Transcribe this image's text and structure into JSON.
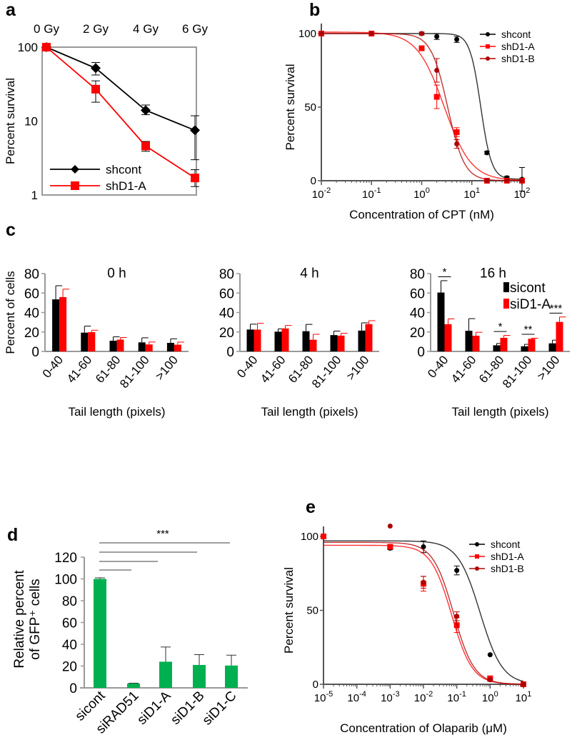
{
  "chart_data": [
    {
      "panel_label": "a",
      "type": "line",
      "x_categories": [
        "0 Gy",
        "2 Gy",
        "4 Gy",
        "6 Gy"
      ],
      "ylabel": "Percent survival",
      "yscale": "log",
      "ylim": [
        1,
        100
      ],
      "yticks": [
        "1",
        "10",
        "100"
      ],
      "legend": "bottom-left",
      "series": [
        {
          "name": "shcont",
          "color": "#000000",
          "marker": "diamond",
          "values": [
            100,
            52,
            14,
            7.5
          ],
          "err_low": [
            100,
            42,
            12.2,
            3
          ],
          "err_high": [
            100,
            62,
            16.5,
            11.8
          ]
        },
        {
          "name": "shD1-A",
          "color": "#ff0000",
          "marker": "square",
          "values": [
            100,
            27,
            4.6,
            1.7
          ],
          "err_low": [
            100,
            18,
            3.9,
            1.3
          ],
          "err_high": [
            100,
            35,
            5.3,
            2.2
          ]
        }
      ]
    },
    {
      "panel_label": "b",
      "type": "scatter",
      "xlabel": "Concentration of CPT (nM)",
      "ylabel": "Percent survival",
      "xscale": "log",
      "xlim": [
        0.01,
        100
      ],
      "xtick_base": "10",
      "xtick_exponents": [
        "-2",
        "-1",
        "0",
        "1",
        "2"
      ],
      "ylim": [
        0,
        100
      ],
      "yticks": [
        "0",
        "50",
        "100"
      ],
      "legend": "top-right",
      "x": [
        0.01,
        0.1,
        1,
        2,
        5,
        20,
        50,
        100
      ],
      "series": [
        {
          "name": "shcont",
          "color": "#000000",
          "values": [
            100,
            100,
            100,
            98,
            96,
            19,
            2,
            1
          ],
          "err": [
            0,
            0,
            1,
            2,
            2,
            1,
            1,
            8
          ],
          "fit": {
            "top": 100,
            "bottom": 1,
            "ic50": 15,
            "hill": 4
          }
        },
        {
          "name": "shD1-A",
          "color": "#ff0000",
          "values": [
            100,
            100,
            90,
            57,
            33,
            0,
            0,
            0
          ],
          "err": [
            0,
            0,
            0,
            8,
            3,
            0,
            0,
            0
          ],
          "fit": {
            "top": 101,
            "bottom": 0,
            "ic50": 2.8,
            "hill": 1.6
          }
        },
        {
          "name": "shD1-B",
          "color": "#b00000",
          "values": [
            100,
            100,
            100,
            75,
            25,
            0,
            0,
            0
          ],
          "err": [
            0,
            0,
            0,
            8,
            3,
            0,
            0,
            0
          ],
          "fit": {
            "top": 100,
            "bottom": 0,
            "ic50": 3.3,
            "hill": 2.6
          }
        }
      ]
    },
    {
      "panel_label": "c",
      "type": "bar",
      "categories": [
        "0-40",
        "41-60",
        "61-80",
        "81-100",
        ">100"
      ],
      "xlabel": "Tail length (pixels)",
      "ylabel": "Percent of cells",
      "ylim": [
        0,
        80
      ],
      "yticks": [
        "0",
        "20",
        "40",
        "60",
        "80"
      ],
      "legend": "top-right",
      "series_names": [
        "sicont",
        "siD1-A"
      ],
      "series_colors": [
        "#000000",
        "#ff0000"
      ],
      "subplots": [
        {
          "title": "0 h",
          "values": [
            [
              53.5,
              19.3,
              11,
              9.3,
              8.8
            ],
            [
              55.8,
              19.8,
              12.1,
              7.2,
              6.9
            ]
          ],
          "err_high": [
            [
              67.5,
              26,
              15,
              14,
              13
            ],
            [
              64,
              21.8,
              14.3,
              9.7,
              9.6
            ]
          ],
          "significance": []
        },
        {
          "title": "4 h",
          "values": [
            [
              22.5,
              20.3,
              20.8,
              16.8,
              21.4
            ],
            [
              22.4,
              23.6,
              12,
              16.2,
              28.1
            ]
          ],
          "err_high": [
            [
              28,
              23.2,
              27.8,
              20.9,
              29.4
            ],
            [
              28.9,
              26.7,
              17.6,
              18.7,
              31.6
            ]
          ],
          "significance": []
        },
        {
          "title": "16 h",
          "values": [
            [
              60.5,
              21.2,
              6.3,
              5.3,
              8.3
            ],
            [
              28,
              16.1,
              14,
              13,
              30.3
            ]
          ],
          "err_high": [
            [
              72.7,
              33.7,
              8.2,
              7.3,
              11.6
            ],
            [
              33.5,
              19.7,
              16.5,
              13.6,
              35.4
            ]
          ],
          "significance": [
            {
              "category": 0,
              "label": "*"
            },
            {
              "category": 2,
              "label": "*"
            },
            {
              "category": 3,
              "label": "**"
            },
            {
              "category": 4,
              "label": "***"
            }
          ]
        }
      ]
    },
    {
      "panel_label": "d",
      "type": "bar",
      "categories": [
        "sicont",
        "siRAD51",
        "siD1-A",
        "siD1-B",
        "siD1-C"
      ],
      "values": [
        100,
        4,
        24,
        21,
        20.5
      ],
      "err_high": [
        101,
        4.3,
        37.5,
        30.5,
        30
      ],
      "color": "#00b050",
      "ylabel_lines": [
        "Relative percent",
        "of GFP⁺ cells"
      ],
      "ylim": [
        0,
        120
      ],
      "yticks": [
        "0",
        "20",
        "40",
        "60",
        "80",
        "100",
        "120"
      ],
      "significance": {
        "label": "***",
        "comparisons": [
          [
            0,
            1
          ],
          [
            0,
            2
          ],
          [
            0,
            3
          ],
          [
            0,
            4
          ]
        ]
      }
    },
    {
      "panel_label": "e",
      "type": "scatter",
      "xlabel": "Concentration of Olaparib (μM)",
      "ylabel": "Percent survival",
      "xscale": "log",
      "xlim": [
        1e-05,
        10
      ],
      "xtick_base": "10",
      "xtick_exponents": [
        "-5",
        "-4",
        "-3",
        "-2",
        "-1",
        "0",
        "1"
      ],
      "ylim": [
        0,
        100
      ],
      "yticks": [
        "0",
        "50",
        "100"
      ],
      "legend": "top-right",
      "x": [
        1e-05,
        0.001,
        0.01,
        0.1,
        1,
        10
      ],
      "series": [
        {
          "name": "shcont",
          "color": "#000000",
          "values": [
            100,
            92,
            93,
            77,
            20,
            0
          ],
          "err": [
            0,
            1,
            4,
            3,
            0,
            0
          ],
          "fit": {
            "top": 97,
            "bottom": 0,
            "ic50": 0.5,
            "hill": 1.3
          }
        },
        {
          "name": "shD1-A",
          "color": "#ff0000",
          "values": [
            100,
            93,
            68,
            40,
            4,
            0
          ],
          "err": [
            0,
            1,
            5,
            5,
            1,
            0
          ],
          "fit": {
            "top": 94,
            "bottom": 0,
            "ic50": 0.07,
            "hill": 1.4
          }
        },
        {
          "name": "shD1-B",
          "color": "#b00000",
          "values": [
            null,
            107,
            69,
            46,
            3,
            0
          ],
          "err": [
            0,
            0,
            4,
            3,
            1,
            0
          ],
          "fit": {
            "top": 96,
            "bottom": 0,
            "ic50": 0.08,
            "hill": 1.4
          }
        }
      ]
    }
  ]
}
